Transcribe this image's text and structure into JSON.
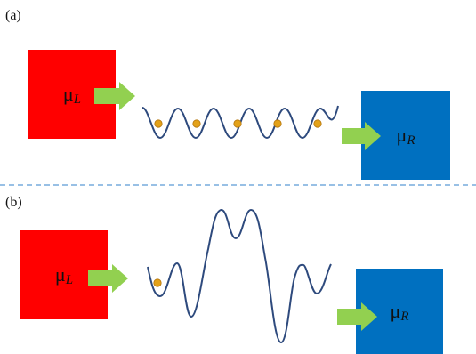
{
  "panels": {
    "a": {
      "label": "(a)",
      "left_reservoir": {
        "symbol": "μ",
        "subscript": "L",
        "color": "#ff0000"
      },
      "right_reservoir": {
        "symbol": "μ",
        "subscript": "R",
        "color": "#0070c0"
      }
    },
    "b": {
      "label": "(b)",
      "left_reservoir": {
        "symbol": "μ",
        "subscript": "L",
        "color": "#ff0000"
      },
      "right_reservoir": {
        "symbol": "μ",
        "subscript": "R",
        "color": "#0070c0"
      }
    }
  },
  "colors": {
    "arrow": "#92d050",
    "potential": "#2e4a7d",
    "particle": "#e3a21a",
    "divider": "#5b9bd5"
  }
}
